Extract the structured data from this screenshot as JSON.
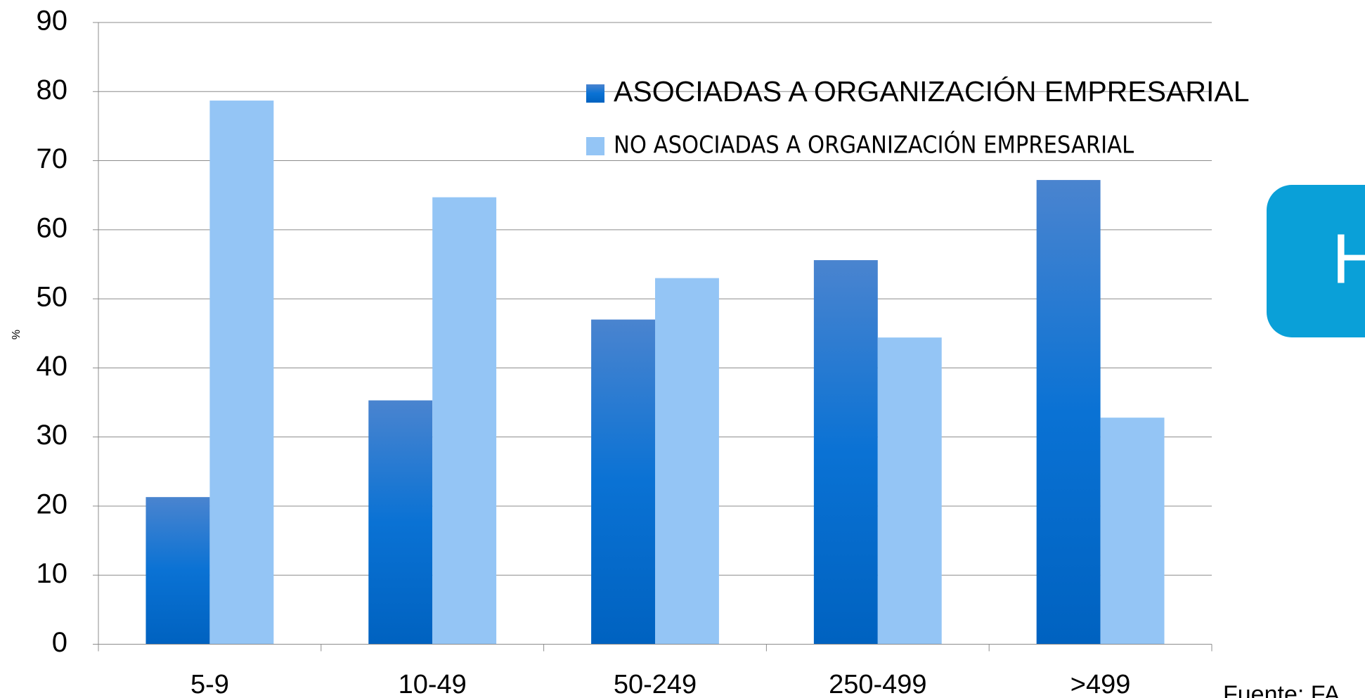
{
  "chart_data": {
    "type": "bar",
    "y_label": "%",
    "categories": [
      "5-9",
      "10-49",
      "50-249",
      "250-499",
      ">499"
    ],
    "series": [
      {
        "name": "ASOCIADAS A ORGANIZACIÓN EMPRESARIAL",
        "color": "#0a6ccc",
        "values": [
          21.3,
          35.3,
          47,
          55.6,
          67.2
        ]
      },
      {
        "name": "NO ASOCIADAS A ORGANIZACIÓN EMPRESARIAL",
        "color": "#94c5f5",
        "values": [
          78.7,
          64.7,
          53,
          44.4,
          32.8
        ]
      }
    ],
    "ylim": [
      0,
      90
    ],
    "yticks": [
      0,
      10,
      20,
      30,
      40,
      50,
      60,
      70,
      80,
      90
    ],
    "grid": true,
    "legend": "top-right"
  },
  "side_box": {
    "text": "H",
    "color": "#0aa0d8"
  },
  "source": "Fuente: FA"
}
